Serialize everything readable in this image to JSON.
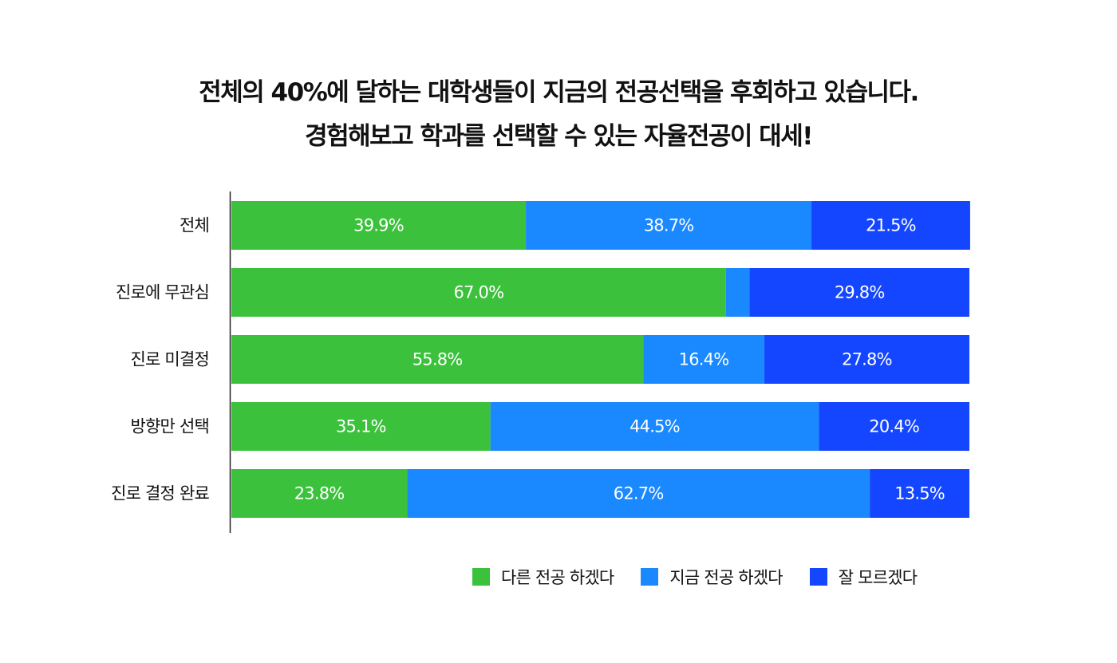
{
  "title_lines": [
    "전체의 40%에 달하는 대학생들이 지금의 전공선택을 후회하고 있습니다.",
    "경험해보고 학과를 선택할 수 있는 자율전공이 대세!"
  ],
  "colors": {
    "green": "#3bc13b",
    "light_blue": "#1a88ff",
    "blue": "#1446ff",
    "axis": "#222222",
    "label_text": "#ffffff"
  },
  "chart_data": {
    "type": "bar",
    "orientation": "horizontal",
    "stacked": true,
    "value_format": "percent",
    "categories": [
      "전체",
      "진로에 무관심",
      "진로 미결정",
      "방향만 선택",
      "진로 결정 완료"
    ],
    "series": [
      {
        "name": "다른 전공 하겠다",
        "color": "#3bc13b",
        "values": [
          39.9,
          67.0,
          55.8,
          35.1,
          23.8
        ],
        "labels": [
          "39.9%",
          "67.0%",
          "55.8%",
          "35.1%",
          "23.8%"
        ]
      },
      {
        "name": "지금 전공 하겠다",
        "color": "#1a88ff",
        "values": [
          38.7,
          3.2,
          16.4,
          44.5,
          62.7
        ],
        "labels": [
          "38.7%",
          "",
          "16.4%",
          "44.5%",
          "62.7%"
        ]
      },
      {
        "name": "잘 모르겠다",
        "color": "#1446ff",
        "values": [
          21.5,
          29.8,
          27.8,
          20.4,
          13.5
        ],
        "labels": [
          "21.5%",
          "29.8%",
          "27.8%",
          "20.4%",
          "13.5%"
        ]
      }
    ],
    "xlim": [
      0,
      100
    ],
    "grid": false,
    "legend_position": "bottom-right"
  }
}
